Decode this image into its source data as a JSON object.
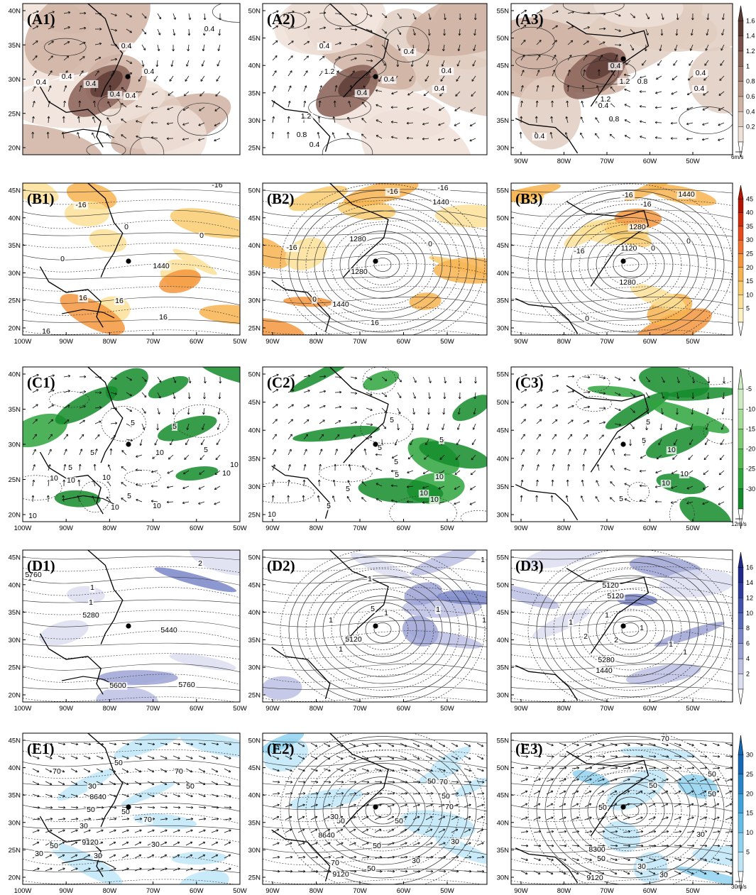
{
  "rows": [
    {
      "key": "A",
      "colorbar": {
        "ticks": [
          "1.6",
          "1.4",
          "1.2",
          "1",
          "0.8",
          "0.6",
          "0.4",
          "0.2"
        ],
        "colors": [
          "#5a3a33",
          "#77514a",
          "#8e675d",
          "#a57f72",
          "#ba9888",
          "#cfb2a2",
          "#e0ccbf",
          "#efe1d8"
        ]
      },
      "ref_vector": "6m/s",
      "panels": [
        {
          "label": "(A1)",
          "lat": [
            "40N",
            "35N",
            "30N",
            "25N",
            "20N"
          ],
          "lon": [],
          "labels": [
            "0.4",
            "0.4",
            "0.4",
            "0.4",
            "0.4",
            "0.4",
            "0.4",
            "0.4"
          ]
        },
        {
          "label": "(A2)",
          "lat": [
            "50N",
            "45N",
            "40N",
            "35N",
            "30N",
            "25N"
          ],
          "lon": [],
          "labels": [
            "0.4",
            "0.4",
            "1.2",
            "0.4",
            "0.4",
            "0.4",
            "0.4",
            "1.2",
            "0.8",
            "0.4"
          ]
        },
        {
          "label": "(A3)",
          "lat": [
            "55N",
            "50N",
            "45N",
            "40N",
            "35N",
            "30N"
          ],
          "lon": [
            "90W",
            "80W",
            "70W",
            "60W",
            "50W"
          ],
          "labels": [
            "0.4",
            "1.2",
            "0.8",
            "0.4",
            "0.4",
            "1.2",
            "0.8",
            "0.4",
            "0.4"
          ]
        }
      ]
    },
    {
      "key": "B",
      "colorbar": {
        "ticks": [
          "45",
          "40",
          "35",
          "30",
          "25",
          "20",
          "15",
          "10",
          "5"
        ],
        "colors": [
          "#b31500",
          "#d22d0b",
          "#e84a1b",
          "#f2712e",
          "#f5963d",
          "#f7b34f",
          "#f9cd6e",
          "#fbe197",
          "#fdf1c4"
        ]
      },
      "ref_vector": "",
      "panels": [
        {
          "label": "(B1)",
          "lat": [
            "45N",
            "40N",
            "35N",
            "30N",
            "25N",
            "20N"
          ],
          "lon": [
            "100W",
            "90W",
            "80W",
            "70W",
            "60W",
            "50W"
          ],
          "labels": [
            "-16",
            "-16",
            "0",
            "0",
            "0",
            "1440",
            "16",
            "16",
            "16",
            "16"
          ]
        },
        {
          "label": "(B2)",
          "lat": [
            "50N",
            "45N",
            "40N",
            "35N",
            "30N",
            "25N"
          ],
          "lon": [
            "90W",
            "80W",
            "70W",
            "60W",
            "50W"
          ],
          "labels": [
            "-16",
            "-16",
            "1440",
            "-16",
            "1280",
            "1280",
            "0",
            "0",
            "1440",
            "16"
          ]
        },
        {
          "label": "(B3)",
          "lat": [
            "55N",
            "50N",
            "45N",
            "40N",
            "35N",
            "30N"
          ],
          "lon": [
            "90W",
            "80W",
            "70W",
            "60W",
            "50W"
          ],
          "labels": [
            "-16",
            "1440",
            "-16",
            "1280",
            "1120",
            "0",
            "0",
            "-16",
            "1280",
            "0"
          ]
        }
      ]
    },
    {
      "key": "C",
      "colorbar": {
        "ticks": [
          "-5",
          "-10",
          "-15",
          "-20",
          "-25",
          "-30"
        ],
        "colors": [
          "#cdebc3",
          "#a8dc9b",
          "#7fcb73",
          "#57b954",
          "#2fa53e",
          "#148c2b"
        ]
      },
      "ref_vector": "12m/s",
      "panels": [
        {
          "label": "(C1)",
          "lat": [
            "40N",
            "35N",
            "30N",
            "25N",
            "20N"
          ],
          "lon": [
            "100W",
            "90W",
            "80W",
            "70W",
            "60W",
            "50W"
          ],
          "labels": [
            "5",
            "5",
            "5",
            "10",
            "5",
            "5",
            "10",
            "10",
            "10",
            "10",
            "10",
            "5",
            "10",
            "10",
            "10"
          ]
        },
        {
          "label": "(C2)",
          "lat": [
            "50N",
            "45N",
            "40N",
            "35N",
            "30N",
            "25N"
          ],
          "lon": [
            "90W",
            "80W",
            "70W",
            "60W",
            "50W"
          ],
          "labels": [
            "5",
            "5",
            "5",
            "5",
            "5",
            "10",
            "5",
            "10",
            "10",
            "5",
            "10"
          ]
        },
        {
          "label": "(C3)",
          "lat": [
            "55N",
            "50N",
            "45N",
            "40N",
            "35N",
            "30N"
          ],
          "lon": [
            "90W",
            "80W",
            "70W",
            "60W",
            "50W"
          ],
          "labels": [
            "5",
            "5",
            "10",
            "10",
            "10",
            "5"
          ]
        }
      ]
    },
    {
      "key": "D",
      "colorbar": {
        "ticks": [
          "16",
          "14",
          "12",
          "10",
          "8",
          "6",
          "4",
          "2"
        ],
        "colors": [
          "#1f2a8c",
          "#2f3c9e",
          "#4253ad",
          "#5a6bbb",
          "#7a86c8",
          "#9ca3d5",
          "#bcc0e3",
          "#dcdef1"
        ]
      },
      "ref_vector": "",
      "panels": [
        {
          "label": "(D1)",
          "lat": [
            "45N",
            "40N",
            "35N",
            "30N",
            "25N",
            "20N"
          ],
          "lon": [
            "100W",
            "90W",
            "80W",
            "70W",
            "60W",
            "50W"
          ],
          "labels": [
            "1",
            "2",
            "1",
            "1",
            "5280",
            "5440",
            "5600",
            "5760",
            "5760"
          ]
        },
        {
          "label": "(D2)",
          "lat": [
            "50N",
            "45N",
            "40N",
            "35N",
            "30N",
            "25N"
          ],
          "lon": [
            "90W",
            "80W",
            "70W",
            "60W",
            "50W"
          ],
          "labels": [
            "1",
            "1",
            "1",
            "1",
            "1",
            "5120",
            "5",
            "1",
            "1"
          ]
        },
        {
          "label": "(D3)",
          "lat": [
            "55N",
            "50N",
            "45N",
            "40N",
            "35N",
            "30N"
          ],
          "lon": [
            "90W",
            "80W",
            "70W",
            "60W",
            "50W"
          ],
          "labels": [
            "5120",
            "5120",
            "1",
            "1",
            "2",
            "1",
            "2",
            "1",
            "5280",
            "1440",
            "1"
          ]
        }
      ]
    },
    {
      "key": "E",
      "colorbar": {
        "ticks": [
          "30",
          "25",
          "20",
          "15",
          "10",
          "5"
        ],
        "colors": [
          "#1468b5",
          "#2686c9",
          "#3ea3da",
          "#63bde6",
          "#8fd2ef",
          "#bfe6f7"
        ]
      },
      "ref_vector": "30m/s",
      "panels": [
        {
          "label": "(E1)",
          "lat": [
            "45N",
            "40N",
            "35N",
            "30N",
            "25N",
            "20N"
          ],
          "lon": [
            "100W",
            "90W",
            "80W",
            "70W",
            "60W",
            "50W"
          ],
          "labels": [
            "50",
            "70",
            "70",
            "30",
            "8640",
            "50",
            "70",
            "50",
            "30",
            "50",
            "9120",
            "50",
            "30",
            "30",
            "30"
          ]
        },
        {
          "label": "(E2)",
          "lat": [
            "50N",
            "45N",
            "40N",
            "35N",
            "30N",
            "25N"
          ],
          "lon": [
            "90W",
            "80W",
            "70W",
            "60W",
            "50W"
          ],
          "labels": [
            "50",
            "70",
            "70",
            "50",
            "30",
            "50",
            "8640",
            "50",
            "50",
            "70",
            "9120",
            "50",
            "30",
            "30",
            "30"
          ]
        },
        {
          "label": "(E3)",
          "lat": [
            "55N",
            "50N",
            "45N",
            "40N",
            "35N",
            "30N"
          ],
          "lon": [
            "90W",
            "80W",
            "70W",
            "60W",
            "50W"
          ],
          "labels": [
            "70",
            "50",
            "50",
            "50",
            "50",
            "8300",
            "50",
            "30",
            "30",
            "9120",
            "30"
          ]
        }
      ]
    }
  ]
}
